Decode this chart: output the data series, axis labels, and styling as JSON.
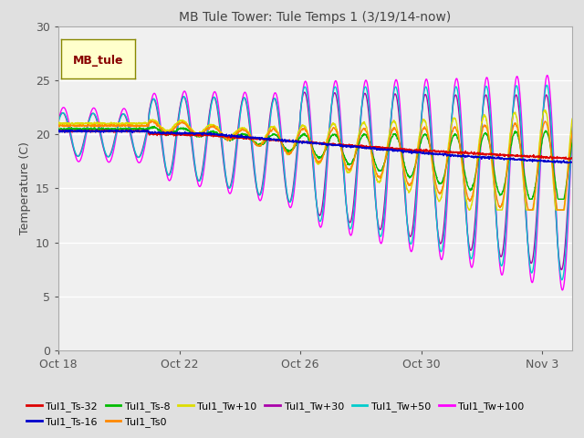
{
  "title": "MB Tule Tower: Tule Temps 1 (3/19/14-now)",
  "ylabel": "Temperature (C)",
  "ylim": [
    0,
    30
  ],
  "yticks": [
    0,
    5,
    10,
    15,
    20,
    25,
    30
  ],
  "legend_box_label": "MB_tule",
  "background_color": "#e0e0e0",
  "plot_bg_color": "#f0f0f0",
  "grid_color": "#ffffff",
  "series": [
    {
      "label": "Tul1_Ts-32",
      "color": "#dd0000"
    },
    {
      "label": "Tul1_Ts-16",
      "color": "#0000cc"
    },
    {
      "label": "Tul1_Ts-8",
      "color": "#00bb00"
    },
    {
      "label": "Tul1_Ts0",
      "color": "#ff8800"
    },
    {
      "label": "Tul1_Tw+10",
      "color": "#dddd00"
    },
    {
      "label": "Tul1_Tw+30",
      "color": "#aa00aa"
    },
    {
      "label": "Tul1_Tw+50",
      "color": "#00cccc"
    },
    {
      "label": "Tul1_Tw+100",
      "color": "#ff00ff"
    }
  ],
  "xtick_labels": [
    "Oct 18",
    "Oct 22",
    "Oct 26",
    "Oct 30",
    "Nov 3"
  ],
  "xtick_positions": [
    0,
    4,
    8,
    12,
    16
  ]
}
